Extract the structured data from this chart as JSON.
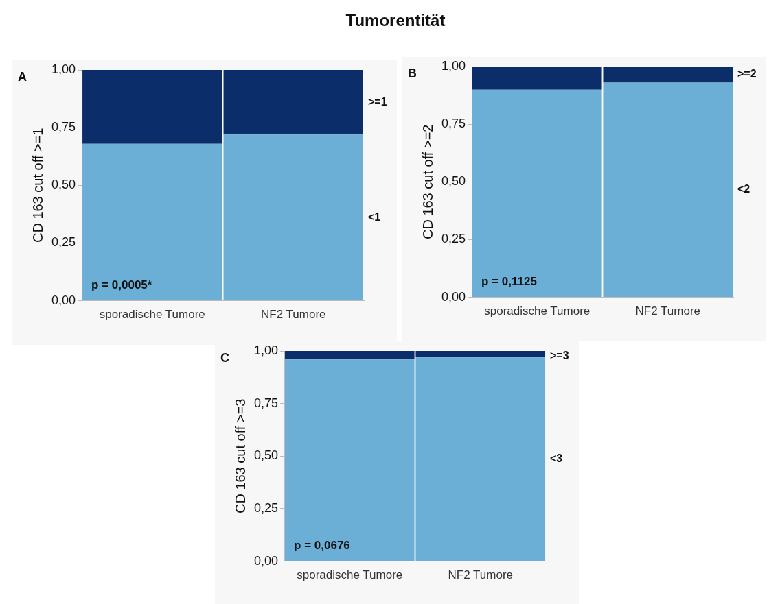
{
  "chart_data": [
    {
      "type": "bar",
      "title": "Tumorentität",
      "ylabel": "CD 163 cut off >=1",
      "stacked": true,
      "categories": [
        "sporadische Tumore",
        "NF2 Tumore"
      ],
      "series": [
        {
          "name": "<1",
          "color": "#6baed6",
          "values": [
            0.68,
            0.72
          ]
        },
        {
          "name": ">=1",
          "color": "#0b2d69",
          "values": [
            0.32,
            0.28
          ]
        }
      ],
      "ylim": [
        0,
        1
      ],
      "yticks": [
        {
          "value": 0,
          "label": "0,00"
        },
        {
          "value": 0.25,
          "label": "0,25"
        },
        {
          "value": 0.5,
          "label": "0,50"
        },
        {
          "value": 0.75,
          "label": "0,75"
        },
        {
          "value": 1,
          "label": "1,00"
        }
      ],
      "annotations": [
        "A",
        "p = 0,0005*"
      ],
      "legend": false,
      "grid": false
    },
    {
      "type": "bar",
      "ylabel": "CD 163 cut off >=2",
      "stacked": true,
      "categories": [
        "sporadische Tumore",
        "NF2 Tumore"
      ],
      "series": [
        {
          "name": "<2",
          "color": "#6baed6",
          "values": [
            0.9,
            0.93
          ]
        },
        {
          "name": ">=2",
          "color": "#0b2d69",
          "values": [
            0.1,
            0.07
          ]
        }
      ],
      "ylim": [
        0,
        1
      ],
      "yticks": [
        {
          "value": 0,
          "label": "0,00"
        },
        {
          "value": 0.25,
          "label": "0,25"
        },
        {
          "value": 0.5,
          "label": "0,50"
        },
        {
          "value": 0.75,
          "label": "0,75"
        },
        {
          "value": 1,
          "label": "1,00"
        }
      ],
      "annotations": [
        "B",
        "p = 0,1125"
      ],
      "legend": false,
      "grid": false
    },
    {
      "type": "bar",
      "ylabel": "CD 163 cut off >=3",
      "stacked": true,
      "categories": [
        "sporadische Tumore",
        "NF2 Tumore"
      ],
      "series": [
        {
          "name": "<3",
          "color": "#6baed6",
          "values": [
            0.96,
            0.97
          ]
        },
        {
          "name": ">=3",
          "color": "#0b2d69",
          "values": [
            0.04,
            0.03
          ]
        }
      ],
      "ylim": [
        0,
        1
      ],
      "yticks": [
        {
          "value": 0,
          "label": "0,00"
        },
        {
          "value": 0.25,
          "label": "0,25"
        },
        {
          "value": 0.5,
          "label": "0,50"
        },
        {
          "value": 0.75,
          "label": "0,75"
        },
        {
          "value": 1,
          "label": "1,00"
        }
      ],
      "annotations": [
        "C",
        "p = 0,0676"
      ],
      "legend": false,
      "grid": false
    }
  ]
}
